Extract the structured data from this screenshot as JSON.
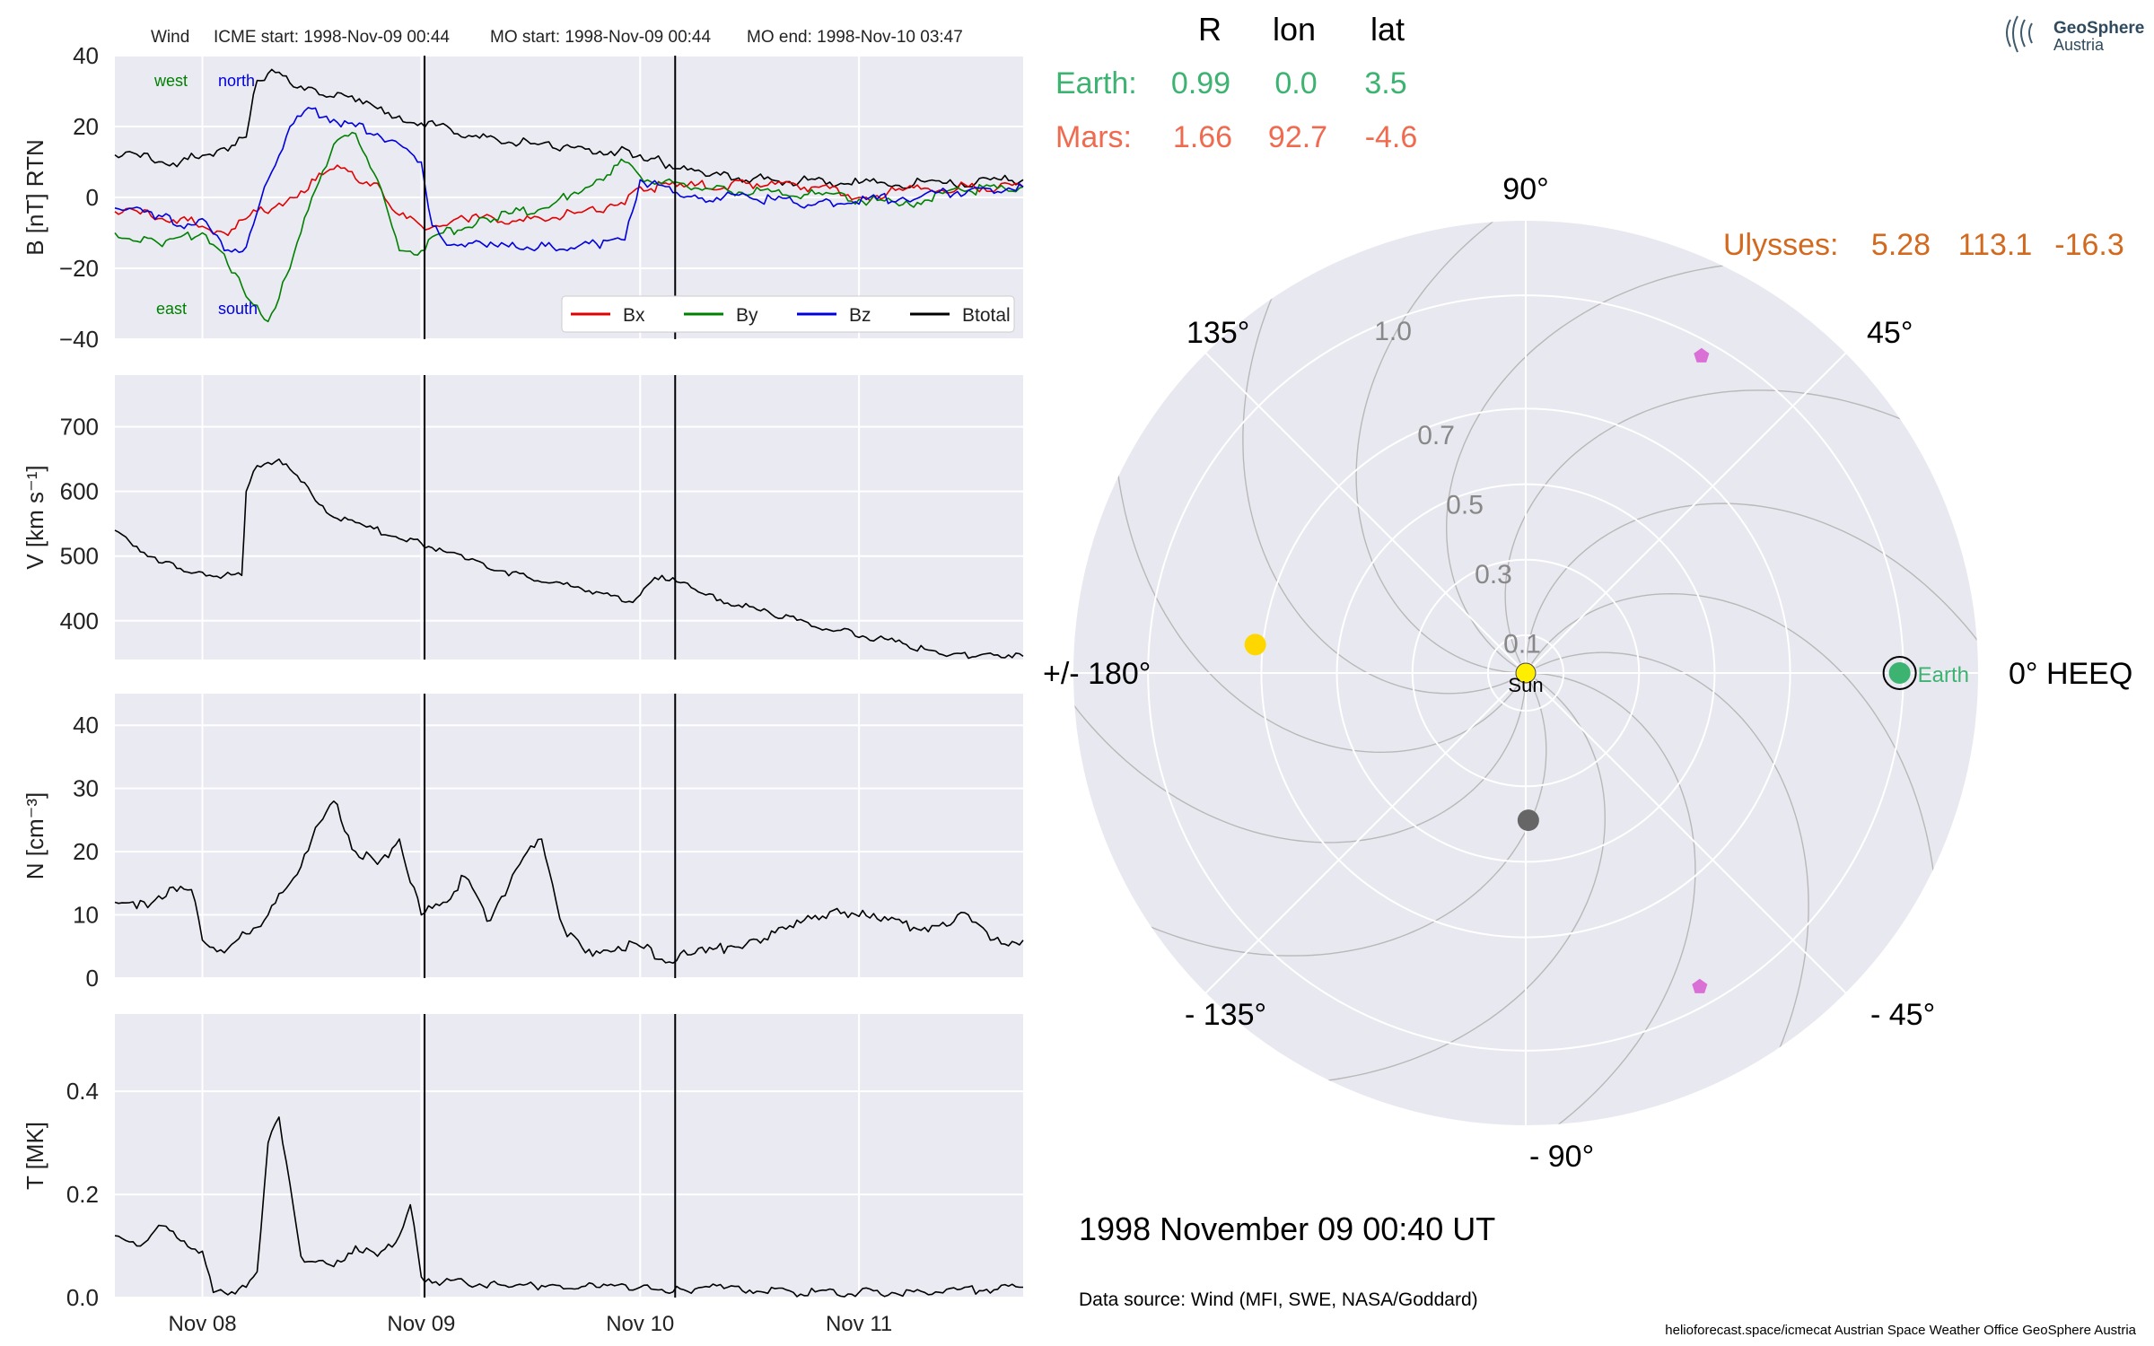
{
  "header": {
    "spacecraft": "Wind",
    "icme_start": "ICME start: 1998-Nov-09 00:44",
    "mo_start": "MO start: 1998-Nov-09 00:44",
    "mo_end": "MO end: 1998-Nov-10 03:47"
  },
  "positions": {
    "col_headers": [
      "R",
      "lon",
      "lat"
    ],
    "earth": {
      "label": "Earth:",
      "R": "0.99",
      "lon": "0.0",
      "lat": "3.5",
      "color": "#3cb371"
    },
    "mars": {
      "label": "Mars:",
      "R": "1.66",
      "lon": "92.7",
      "lat": "-4.6",
      "color": "#f06a4f"
    },
    "ulysses": {
      "label": "Ulysses:",
      "R": "5.28",
      "lon": "113.1",
      "lat": "-16.3",
      "color": "#d2691e"
    }
  },
  "logo": {
    "line1": "GeoSphere",
    "line2": "Austria"
  },
  "polar": {
    "angle_labels": {
      "a0": "0° HEEQ",
      "a45": "45°",
      "a90": "90°",
      "a135": "135°",
      "a180": "+/- 180°",
      "am135": "- 135°",
      "am90": "- 90°",
      "am45": "- 45°"
    },
    "radial_labels": [
      "0.1",
      "0.3",
      "0.5",
      "0.7",
      "1.0"
    ],
    "sun_label": "Sun",
    "earth_label": "Earth",
    "colors": {
      "sun": "#ffee00",
      "earth": "#3cb371",
      "mercury": "#666666",
      "venus": "#ffd700",
      "probe": "#da70d6",
      "grid": "#ffffff",
      "bg": "#e8e8f0"
    }
  },
  "timestamp": "1998 November 09  00:40 UT",
  "data_source": "Data source: Wind (MFI, SWE, NASA/Goddard)",
  "footer": "helioforecast.space/icmecat   Austrian Space Weather Office   GeoSphere Austria",
  "annotations": {
    "west": "west",
    "east": "east",
    "north": "north",
    "south": "south"
  },
  "chart_data": [
    {
      "type": "line",
      "ylabel": "B [nT] RTN",
      "ylim": [
        -40,
        40
      ],
      "yticks": [
        "40",
        "20",
        "0",
        "−20",
        "−40"
      ],
      "xlim": [
        7.6,
        11.75
      ],
      "legend": {
        "placement": "lower-right",
        "entries": [
          "Bx",
          "By",
          "Bz",
          "Btotal"
        ]
      },
      "grid": true,
      "series": [
        {
          "name": "Btotal",
          "color": "#000000",
          "x": [
            7.6,
            7.9,
            8.1,
            8.2,
            8.25,
            8.3,
            8.5,
            8.7,
            8.9,
            9.0,
            9.3,
            9.6,
            9.9,
            10.0,
            10.05,
            10.1,
            10.3,
            10.6,
            11.0,
            11.4,
            11.75
          ],
          "values": [
            12,
            10,
            14,
            17,
            33,
            35,
            31,
            27,
            23,
            21,
            17,
            14,
            13,
            12,
            11,
            10,
            6,
            5,
            4,
            4,
            5
          ]
        },
        {
          "name": "Bx",
          "color": "#e00000",
          "x": [
            7.6,
            7.9,
            8.1,
            8.2,
            8.4,
            8.6,
            8.8,
            8.9,
            9.0,
            9.2,
            9.5,
            9.8,
            9.93,
            10.0,
            10.2,
            10.5,
            10.8,
            11.0,
            11.2,
            11.5,
            11.75
          ],
          "values": [
            -4,
            -6,
            -10,
            -6,
            0,
            8,
            4,
            -5,
            -8,
            -6,
            -6,
            -4,
            -2,
            3,
            3,
            4,
            3,
            0,
            2,
            3,
            3
          ]
        },
        {
          "name": "By",
          "color": "#008000",
          "x": [
            7.6,
            7.8,
            8.0,
            8.1,
            8.2,
            8.3,
            8.4,
            8.5,
            8.6,
            8.7,
            8.8,
            8.9,
            9.0,
            9.1,
            9.3,
            9.6,
            9.8,
            9.93,
            10.0,
            10.1,
            10.4,
            10.8,
            11.2,
            11.5,
            11.75
          ],
          "values": [
            -10,
            -13,
            -10,
            -16,
            -28,
            -35,
            -20,
            0,
            15,
            18,
            5,
            -15,
            -15,
            -10,
            -6,
            -2,
            5,
            10,
            6,
            4,
            2,
            1,
            -2,
            2,
            3
          ]
        },
        {
          "name": "Bz",
          "color": "#0000dd",
          "x": [
            7.6,
            7.8,
            7.9,
            8.0,
            8.1,
            8.2,
            8.3,
            8.4,
            8.5,
            8.6,
            8.7,
            8.8,
            8.9,
            9.0,
            9.05,
            9.1,
            9.3,
            9.6,
            9.8,
            9.93,
            10.0,
            10.2,
            10.5,
            10.8,
            11.2,
            11.5,
            11.75
          ],
          "values": [
            -3,
            -5,
            -8,
            -6,
            -15,
            -14,
            5,
            20,
            25,
            22,
            20,
            18,
            15,
            10,
            -8,
            -12,
            -14,
            -14,
            -13,
            -12,
            5,
            0,
            0,
            -2,
            0,
            2,
            3
          ]
        }
      ]
    },
    {
      "type": "line",
      "ylabel": "V [km s⁻¹]",
      "yticks": [
        "700",
        "600",
        "500",
        "400"
      ],
      "ylim": [
        340,
        780
      ],
      "xlim": [
        7.6,
        11.75
      ],
      "grid": true,
      "series": [
        {
          "name": "",
          "color": "#000000",
          "x": [
            7.6,
            7.7,
            7.8,
            8.0,
            8.1,
            8.18,
            8.2,
            8.25,
            8.35,
            8.45,
            8.6,
            8.75,
            9.0,
            9.2,
            9.5,
            9.8,
            9.95,
            10.0,
            10.05,
            10.1,
            10.3,
            10.6,
            10.9,
            11.2,
            11.4,
            11.6,
            11.75
          ],
          "values": [
            540,
            515,
            490,
            475,
            470,
            470,
            600,
            640,
            650,
            615,
            560,
            545,
            520,
            495,
            465,
            445,
            430,
            440,
            460,
            470,
            440,
            410,
            385,
            365,
            345,
            350,
            345
          ]
        }
      ]
    },
    {
      "type": "line",
      "ylabel": "N [cm⁻³]",
      "yticks": [
        "40",
        "30",
        "20",
        "10",
        "0"
      ],
      "ylim": [
        0,
        45
      ],
      "xlim": [
        7.6,
        11.75
      ],
      "grid": true,
      "series": [
        {
          "name": "",
          "color": "#000000",
          "x": [
            7.6,
            7.7,
            7.8,
            7.95,
            8.0,
            8.1,
            8.2,
            8.3,
            8.4,
            8.5,
            8.6,
            8.7,
            8.8,
            8.9,
            9.0,
            9.1,
            9.2,
            9.3,
            9.45,
            9.55,
            9.65,
            9.75,
            9.9,
            10.0,
            10.1,
            10.3,
            10.5,
            10.7,
            10.9,
            11.1,
            11.3,
            11.5,
            11.6,
            11.75
          ],
          "values": [
            12,
            11,
            13,
            14,
            6,
            4,
            7,
            10,
            15,
            22,
            28,
            20,
            18,
            22,
            10,
            12,
            16,
            9,
            18,
            22,
            8,
            4,
            5,
            5,
            3,
            4,
            6,
            8,
            11,
            9,
            8,
            10,
            6,
            6
          ]
        }
      ]
    },
    {
      "type": "line",
      "ylabel": "T [MK]",
      "yticks": [
        "0.4",
        "0.2",
        "0.0"
      ],
      "ylim": [
        0,
        0.55
      ],
      "xlim": [
        7.6,
        11.75
      ],
      "xtick_values": [
        8,
        9,
        10,
        11
      ],
      "xticks": [
        "Nov 08",
        "Nov 09",
        "Nov 10",
        "Nov 11"
      ],
      "grid": true,
      "series": [
        {
          "name": "",
          "color": "#000000",
          "x": [
            7.6,
            7.7,
            7.8,
            7.9,
            8.0,
            8.05,
            8.1,
            8.2,
            8.25,
            8.3,
            8.35,
            8.4,
            8.45,
            8.5,
            8.6,
            8.7,
            8.8,
            8.9,
            8.95,
            9.0,
            9.1,
            9.2,
            9.4,
            9.6,
            9.8,
            10.0,
            10.2,
            10.4,
            10.7,
            11.0,
            11.3,
            11.75
          ],
          "values": [
            0.12,
            0.1,
            0.14,
            0.11,
            0.09,
            0.01,
            0.01,
            0.02,
            0.05,
            0.3,
            0.35,
            0.22,
            0.08,
            0.07,
            0.06,
            0.1,
            0.08,
            0.12,
            0.18,
            0.04,
            0.03,
            0.03,
            0.02,
            0.025,
            0.02,
            0.02,
            0.015,
            0.02,
            0.01,
            0.01,
            0.01,
            0.02
          ]
        }
      ]
    }
  ],
  "event_lines": {
    "x": [
      9.015,
      10.16
    ],
    "color": "#000000"
  }
}
